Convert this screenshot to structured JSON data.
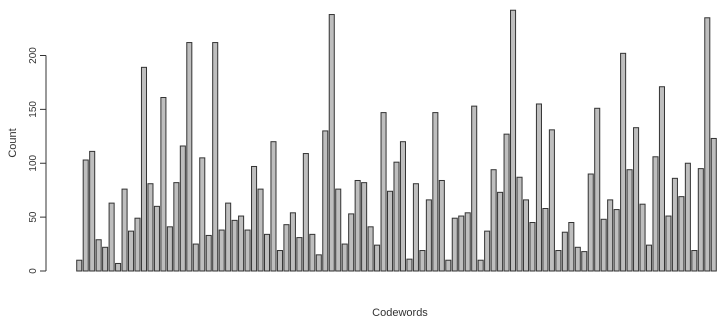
{
  "chart_data": {
    "type": "bar",
    "xlabel": "Codewords",
    "ylabel": "Count",
    "ylim": [
      0,
      245
    ],
    "yticks": [
      0,
      50,
      100,
      150,
      200
    ],
    "grid": false,
    "colors": {
      "bar_fill": "#bebebe",
      "bar_stroke": "#333333",
      "axis": "#333333"
    },
    "values": [
      10,
      103,
      111,
      29,
      22,
      63,
      7,
      76,
      37,
      49,
      189,
      81,
      60,
      161,
      41,
      82,
      116,
      212,
      25,
      105,
      33,
      212,
      38,
      63,
      47,
      51,
      38,
      97,
      76,
      34,
      120,
      19,
      43,
      54,
      31,
      109,
      34,
      15,
      130,
      238,
      76,
      25,
      53,
      84,
      82,
      41,
      24,
      147,
      74,
      101,
      120,
      11,
      81,
      19,
      66,
      147,
      84,
      10,
      49,
      51,
      54,
      153,
      10,
      37,
      94,
      73,
      127,
      242,
      87,
      66,
      45,
      155,
      58,
      131,
      19,
      36,
      45,
      22,
      18,
      90,
      151,
      48,
      66,
      57,
      202,
      94,
      133,
      62,
      24,
      106,
      171,
      51,
      86,
      69,
      100,
      19,
      95,
      235,
      123
    ]
  }
}
